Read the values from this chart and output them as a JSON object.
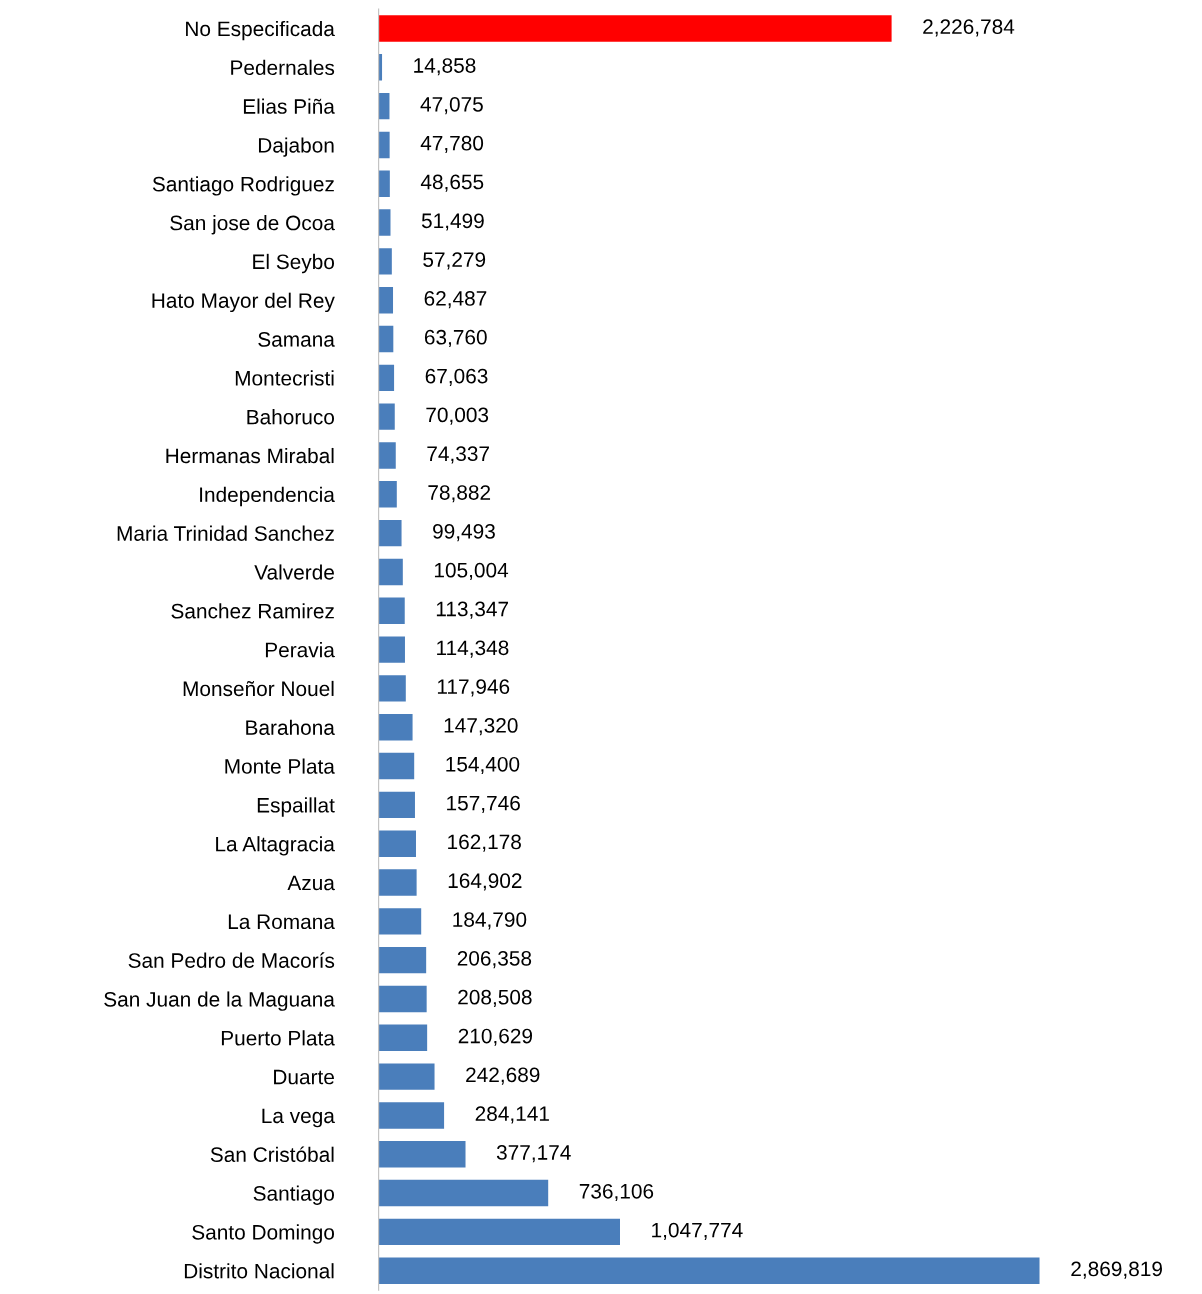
{
  "chart_data": {
    "type": "bar",
    "orientation": "horizontal",
    "tick_labels": "y",
    "grid": false,
    "legend": false,
    "categories": [
      "No Especificada",
      "Pedernales",
      "Elias Piña",
      "Dajabon",
      "Santiago Rodriguez",
      "San jose de Ocoa",
      "El Seybo",
      "Hato Mayor del Rey",
      "Samana",
      "Montecristi",
      "Bahoruco",
      "Hermanas Mirabal",
      "Independencia",
      "Maria Trinidad Sanchez",
      "Valverde",
      "Sanchez Ramirez",
      "Peravia",
      "Monseñor Nouel",
      "Barahona",
      "Monte Plata",
      "Espaillat",
      "La Altagracia",
      "Azua",
      "La Romana",
      "San Pedro de Macorís",
      "San Juan de la Maguana",
      "Puerto Plata",
      "Duarte",
      "La vega",
      "San Cristóbal",
      "Santiago",
      "Santo Domingo",
      "Distrito Nacional"
    ],
    "values": [
      2226784,
      14858,
      47075,
      47780,
      48655,
      51499,
      57279,
      62487,
      63760,
      67063,
      70003,
      74337,
      78882,
      99493,
      105004,
      113347,
      114348,
      117946,
      147320,
      154400,
      157746,
      162178,
      164902,
      184790,
      206358,
      208508,
      210629,
      242689,
      284141,
      377174,
      736106,
      1047774,
      2869819
    ],
    "value_labels": [
      "2,226,784",
      "14,858",
      "47,075",
      "47,780",
      "48,655",
      "51,499",
      "57,279",
      "62,487",
      "63,760",
      "67,063",
      "70,003",
      "74,337",
      "78,882",
      "99,493",
      "105,004",
      "113,347",
      "114,348",
      "117,946",
      "147,320",
      "154,400",
      "157,746",
      "162,178",
      "164,902",
      "184,790",
      "206,358",
      "208,508",
      "210,629",
      "242,689",
      "284,141",
      "377,174",
      "736,106",
      "1,047,774",
      "2,869,819"
    ],
    "colors": [
      "#ff0000",
      "#4a7ebb",
      "#4a7ebb",
      "#4a7ebb",
      "#4a7ebb",
      "#4a7ebb",
      "#4a7ebb",
      "#4a7ebb",
      "#4a7ebb",
      "#4a7ebb",
      "#4a7ebb",
      "#4a7ebb",
      "#4a7ebb",
      "#4a7ebb",
      "#4a7ebb",
      "#4a7ebb",
      "#4a7ebb",
      "#4a7ebb",
      "#4a7ebb",
      "#4a7ebb",
      "#4a7ebb",
      "#4a7ebb",
      "#4a7ebb",
      "#4a7ebb",
      "#4a7ebb",
      "#4a7ebb",
      "#4a7ebb",
      "#4a7ebb",
      "#4a7ebb",
      "#4a7ebb",
      "#4a7ebb",
      "#4a7ebb",
      "#4a7ebb"
    ]
  }
}
